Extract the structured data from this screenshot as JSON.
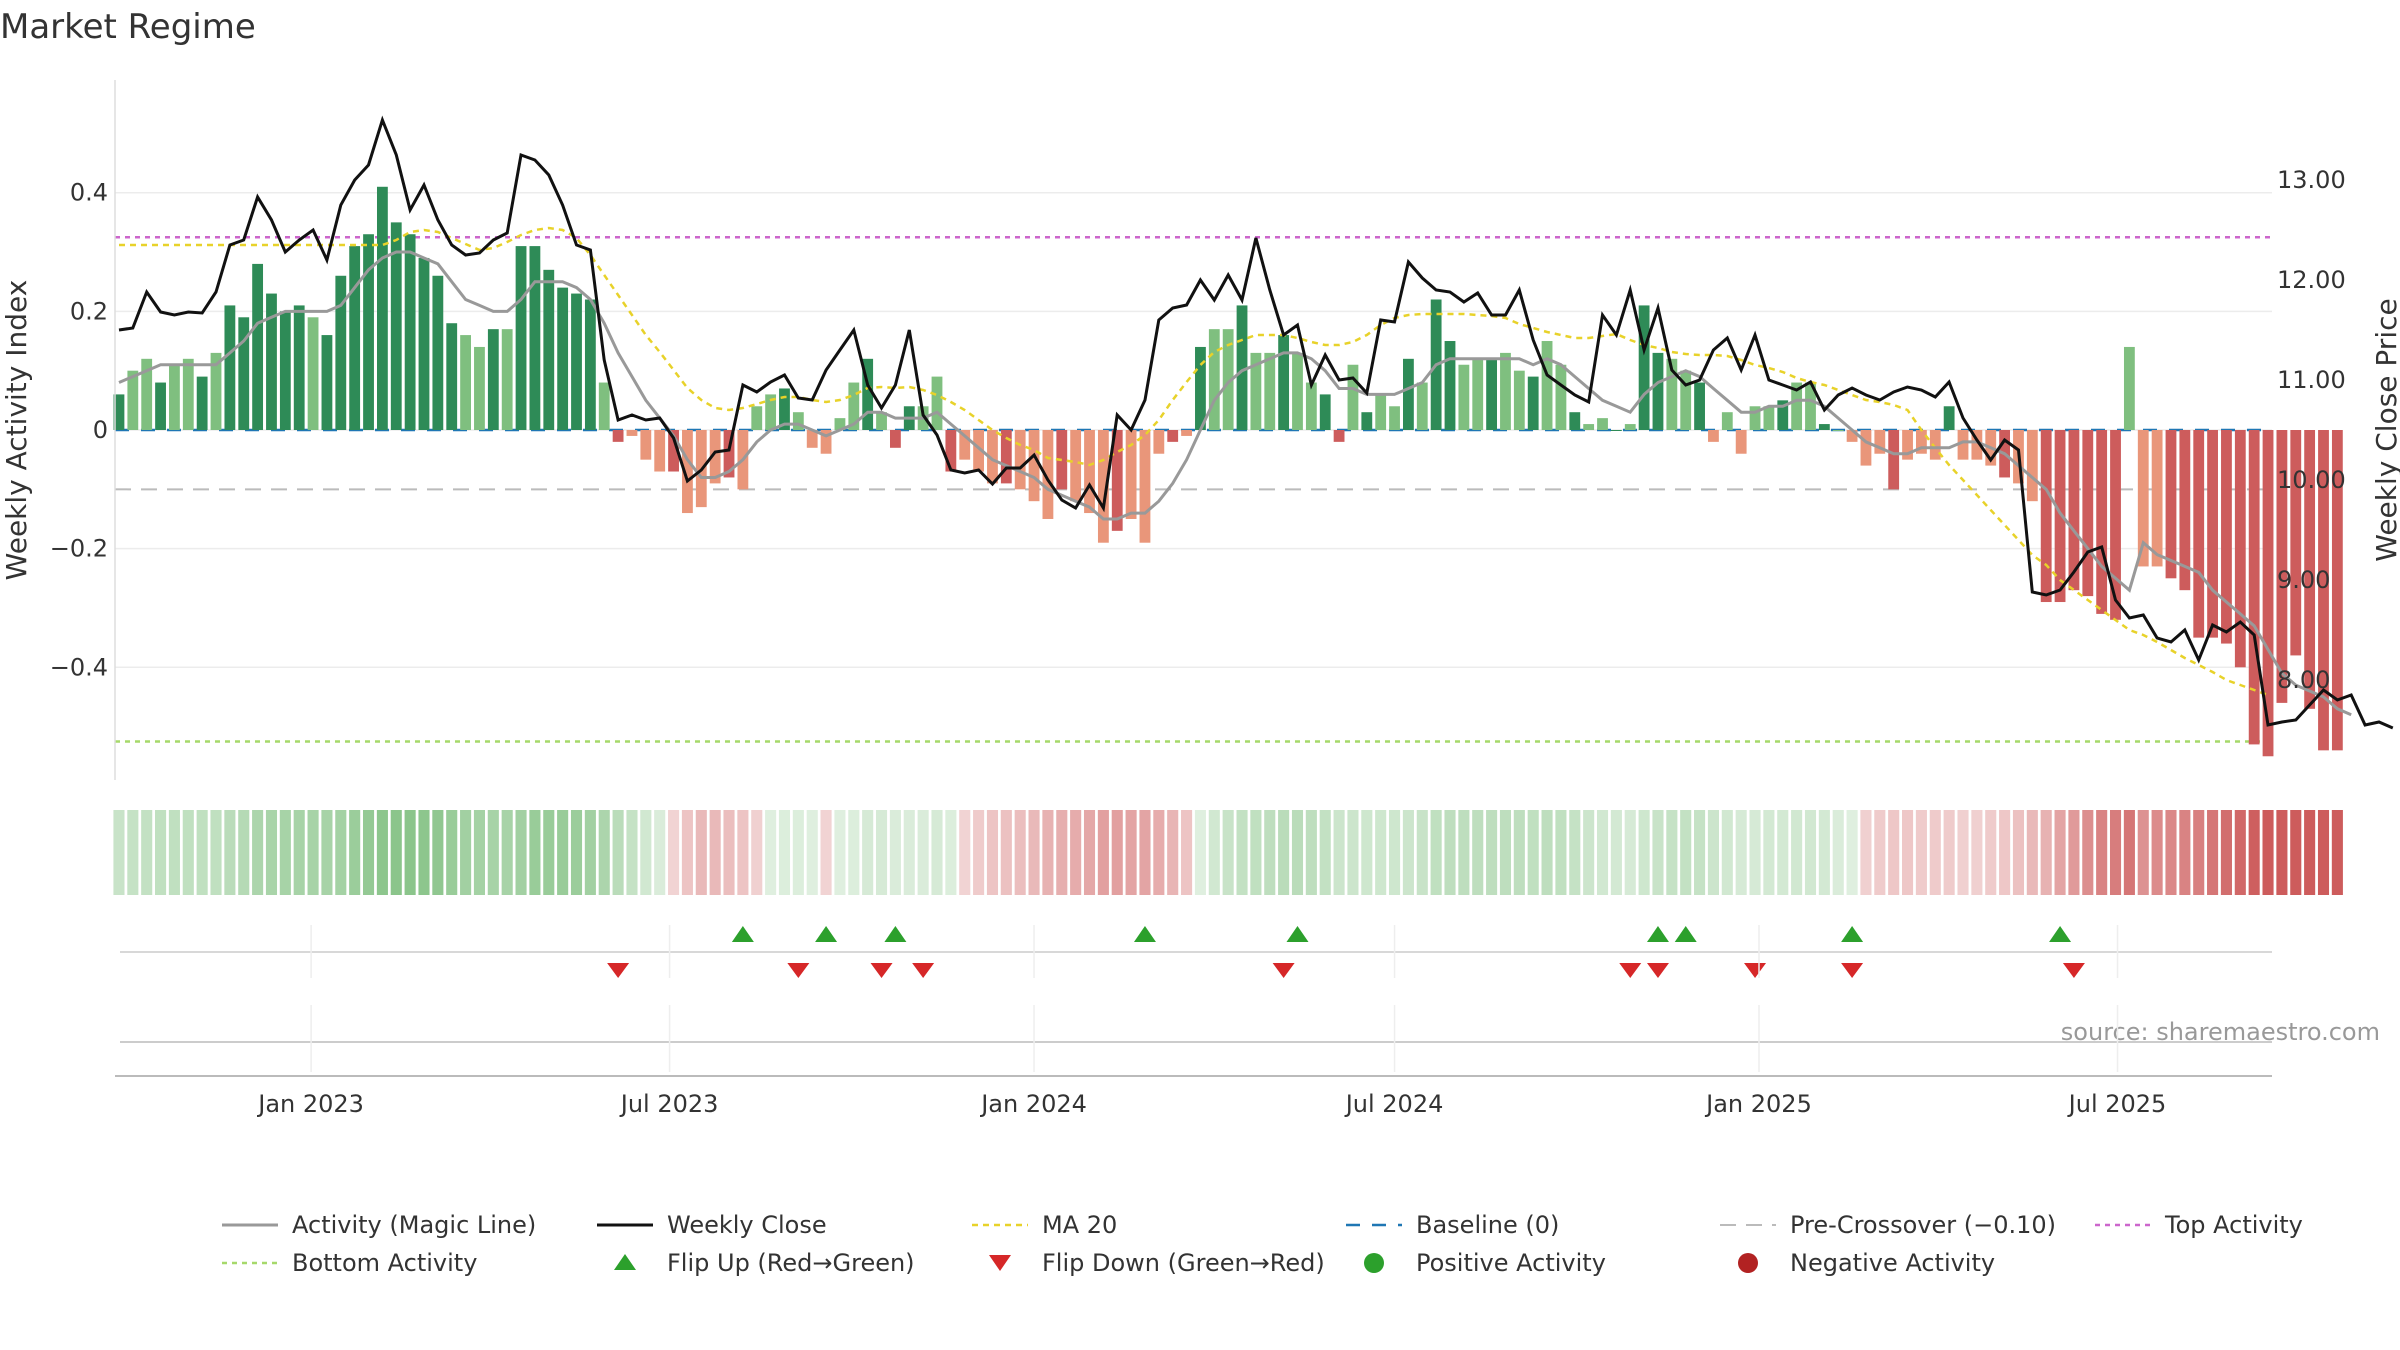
{
  "title": "Market Regime",
  "source": "source: sharemaestro.com",
  "colors": {
    "pos_dark": "#2e8b57",
    "pos_light": "#7fbf7f",
    "neg_dark": "#cd5c5c",
    "neg_light": "#e9967a",
    "activity_line": "#999999",
    "close_line": "#111111",
    "ma_line": "#e8d22a",
    "baseline": "#1f77b4",
    "precross": "#bbbbbb",
    "top": "#cc66cc",
    "bottom": "#a6d96a",
    "flip_up": "#2ca02c",
    "flip_down": "#d62728",
    "pos_dot": "#2ca02c",
    "neg_dot": "#b22222"
  },
  "chart_data": {
    "type": "bar",
    "start_week": "2022-09-26",
    "x_ticks": [
      "Jan 2023",
      "Jul 2023",
      "Jan 2024",
      "Jul 2024",
      "Jan 2025",
      "Jul 2025"
    ],
    "x_tick_dates": [
      "2023-01-01",
      "2023-07-01",
      "2024-01-01",
      "2024-07-01",
      "2025-01-01",
      "2025-07-01"
    ],
    "x_range": [
      "2022-09-24",
      "2025-09-17"
    ],
    "left_axis": {
      "label": "Weekly Activity Index",
      "range": [
        -0.59,
        0.59
      ],
      "ticks": [
        0.4,
        0.2,
        0,
        -0.2,
        -0.4
      ],
      "tick_labels": [
        "0.4",
        "0.2",
        "0",
        "−0.2",
        "−0.4"
      ]
    },
    "right_axis": {
      "label": "Weekly Close Price",
      "range": [
        7.0,
        14.0
      ],
      "ticks": [
        13,
        12,
        11,
        10,
        9,
        8
      ],
      "tick_labels": [
        "13.00",
        "12.00",
        "11.00",
        "10.00",
        "9.00",
        "8.00"
      ]
    },
    "top_activity": 0.325,
    "bottom_activity": -0.525,
    "pre_crossover": -0.1,
    "activity": [
      0.06,
      0.1,
      0.12,
      0.08,
      0.11,
      0.12,
      0.09,
      0.13,
      0.21,
      0.19,
      0.28,
      0.23,
      0.2,
      0.21,
      0.19,
      0.16,
      0.26,
      0.31,
      0.33,
      0.41,
      0.35,
      0.33,
      0.29,
      0.26,
      0.18,
      0.16,
      0.14,
      0.17,
      0.17,
      0.31,
      0.31,
      0.27,
      0.24,
      0.23,
      0.22,
      0.08,
      -0.02,
      -0.01,
      -0.05,
      -0.07,
      -0.07,
      -0.14,
      -0.13,
      -0.09,
      -0.08,
      -0.1,
      0.04,
      0.06,
      0.07,
      0.03,
      -0.03,
      -0.04,
      0.02,
      0.08,
      0.12,
      0.03,
      -0.03,
      0.04,
      0.04,
      0.09,
      -0.07,
      -0.05,
      -0.07,
      -0.09,
      -0.09,
      -0.1,
      -0.12,
      -0.15,
      -0.1,
      -0.12,
      -0.14,
      -0.19,
      -0.17,
      -0.15,
      -0.19,
      -0.04,
      -0.02,
      -0.01,
      0.14,
      0.17,
      0.17,
      0.21,
      0.13,
      0.13,
      0.16,
      0.13,
      0.08,
      0.06,
      -0.02,
      0.11,
      0.03,
      0.06,
      0.04,
      0.12,
      0.08,
      0.22,
      0.15,
      0.11,
      0.12,
      0.12,
      0.13,
      0.1,
      0.09,
      0.15,
      0.11,
      0.03,
      0.01,
      0.02,
      0.0,
      0.01,
      0.21,
      0.13,
      0.12,
      0.1,
      0.08,
      -0.02,
      0.03,
      -0.04,
      0.04,
      0.04,
      0.05,
      0.08,
      0.08,
      0.01,
      0.0,
      -0.02,
      -0.06,
      -0.04,
      -0.1,
      -0.05,
      -0.04,
      -0.05,
      0.04,
      -0.05,
      -0.05,
      -0.06,
      -0.08,
      -0.09,
      -0.12,
      -0.29,
      -0.29,
      -0.27,
      -0.28,
      -0.31,
      -0.32,
      0.14,
      -0.23,
      -0.23,
      -0.25,
      -0.27,
      -0.35,
      -0.35,
      -0.36,
      -0.4,
      -0.53,
      -0.55,
      -0.46,
      -0.38,
      -0.47,
      -0.54,
      -0.54
    ],
    "close": [
      11.5,
      11.52,
      11.88,
      11.68,
      11.65,
      11.68,
      11.67,
      11.88,
      12.35,
      12.4,
      12.83,
      12.6,
      12.28,
      12.4,
      12.5,
      12.2,
      12.75,
      13.0,
      13.15,
      13.6,
      13.25,
      12.7,
      12.95,
      12.6,
      12.35,
      12.25,
      12.27,
      12.4,
      12.47,
      13.25,
      13.2,
      13.05,
      12.75,
      12.35,
      12.3,
      11.2,
      10.6,
      10.65,
      10.6,
      10.62,
      10.42,
      9.99,
      10.1,
      10.28,
      10.3,
      10.95,
      10.88,
      10.98,
      11.05,
      10.82,
      10.8,
      11.1,
      11.3,
      11.5,
      10.95,
      10.72,
      10.95,
      11.5,
      10.65,
      10.45,
      10.1,
      10.07,
      10.1,
      9.96,
      10.12,
      10.12,
      10.25,
      10.0,
      9.8,
      9.72,
      9.95,
      9.72,
      10.65,
      10.5,
      10.8,
      11.6,
      11.72,
      11.75,
      12.0,
      11.8,
      12.05,
      11.8,
      12.42,
      11.9,
      11.45,
      11.55,
      10.95,
      11.25,
      11.0,
      11.02,
      10.87,
      11.6,
      11.58,
      12.18,
      12.02,
      11.9,
      11.88,
      11.78,
      11.87,
      11.65,
      11.65,
      11.9,
      11.4,
      11.05,
      10.95,
      10.85,
      10.78,
      11.65,
      11.45,
      11.9,
      11.3,
      11.72,
      11.1,
      10.95,
      11.0,
      11.3,
      11.42,
      11.1,
      11.45,
      11.0,
      10.95,
      10.9,
      10.98,
      10.7,
      10.85,
      10.92,
      10.85,
      10.8,
      10.88,
      10.93,
      10.9,
      10.83,
      10.98,
      10.62,
      10.4,
      10.2,
      10.4,
      10.3,
      8.88,
      8.85,
      8.9,
      9.08,
      9.28,
      9.33,
      8.8,
      8.62,
      8.65,
      8.42,
      8.38,
      8.5,
      8.2,
      8.55,
      8.48,
      8.58,
      8.45,
      7.55,
      7.58,
      7.6,
      7.75,
      7.9,
      7.8,
      7.85,
      7.55,
      7.58,
      7.52
    ],
    "magic_line": [
      0.08,
      0.09,
      0.1,
      0.11,
      0.11,
      0.11,
      0.11,
      0.11,
      0.13,
      0.15,
      0.18,
      0.19,
      0.2,
      0.2,
      0.2,
      0.2,
      0.21,
      0.24,
      0.27,
      0.29,
      0.3,
      0.3,
      0.29,
      0.28,
      0.25,
      0.22,
      0.21,
      0.2,
      0.2,
      0.22,
      0.25,
      0.25,
      0.25,
      0.24,
      0.22,
      0.18,
      0.13,
      0.09,
      0.05,
      0.02,
      -0.01,
      -0.05,
      -0.08,
      -0.08,
      -0.07,
      -0.05,
      -0.02,
      0.0,
      0.01,
      0.01,
      0.0,
      -0.01,
      0.0,
      0.01,
      0.03,
      0.03,
      0.02,
      0.02,
      0.02,
      0.03,
      0.01,
      -0.01,
      -0.03,
      -0.05,
      -0.06,
      -0.07,
      -0.08,
      -0.1,
      -0.11,
      -0.12,
      -0.13,
      -0.15,
      -0.15,
      -0.14,
      -0.14,
      -0.12,
      -0.09,
      -0.05,
      0.0,
      0.05,
      0.08,
      0.1,
      0.11,
      0.12,
      0.13,
      0.13,
      0.12,
      0.1,
      0.07,
      0.07,
      0.06,
      0.06,
      0.06,
      0.07,
      0.08,
      0.11,
      0.12,
      0.12,
      0.12,
      0.12,
      0.12,
      0.12,
      0.11,
      0.12,
      0.11,
      0.09,
      0.07,
      0.05,
      0.04,
      0.03,
      0.06,
      0.08,
      0.09,
      0.1,
      0.09,
      0.07,
      0.05,
      0.03,
      0.03,
      0.04,
      0.04,
      0.05,
      0.05,
      0.04,
      0.02,
      0.0,
      -0.02,
      -0.03,
      -0.04,
      -0.04,
      -0.03,
      -0.03,
      -0.03,
      -0.02,
      -0.02,
      -0.03,
      -0.04,
      -0.06,
      -0.08,
      -0.1,
      -0.14,
      -0.17,
      -0.2,
      -0.23,
      -0.25,
      -0.27,
      -0.19,
      -0.21,
      -0.22,
      -0.23,
      -0.24,
      -0.27,
      -0.29,
      -0.31,
      -0.33,
      -0.37,
      -0.41,
      -0.43,
      -0.44,
      -0.45,
      -0.47,
      -0.48
    ],
    "ma20": [
      12.35,
      12.35,
      12.35,
      12.35,
      12.35,
      12.35,
      12.35,
      12.35,
      12.35,
      12.35,
      12.35,
      12.35,
      12.35,
      12.35,
      12.35,
      12.35,
      12.35,
      12.35,
      12.35,
      12.35,
      12.4,
      12.48,
      12.5,
      12.48,
      12.42,
      12.36,
      12.3,
      12.32,
      12.38,
      12.45,
      12.5,
      12.52,
      12.5,
      12.42,
      12.25,
      12.05,
      11.85,
      11.65,
      11.45,
      11.28,
      11.1,
      10.92,
      10.8,
      10.72,
      10.7,
      10.72,
      10.76,
      10.8,
      10.83,
      10.83,
      10.8,
      10.78,
      10.8,
      10.85,
      10.92,
      10.93,
      10.92,
      10.93,
      10.9,
      10.85,
      10.78,
      10.7,
      10.6,
      10.5,
      10.42,
      10.35,
      10.3,
      10.22,
      10.2,
      10.18,
      10.15,
      10.2,
      10.28,
      10.35,
      10.45,
      10.6,
      10.8,
      10.98,
      11.15,
      11.28,
      11.35,
      11.4,
      11.45,
      11.45,
      11.45,
      11.42,
      11.38,
      11.35,
      11.35,
      11.38,
      11.45,
      11.55,
      11.62,
      11.65,
      11.66,
      11.66,
      11.66,
      11.66,
      11.65,
      11.64,
      11.62,
      11.56,
      11.52,
      11.48,
      11.45,
      11.42,
      11.42,
      11.44,
      11.46,
      11.4,
      11.35,
      11.32,
      11.28,
      11.26,
      11.25,
      11.25,
      11.24,
      11.2,
      11.15,
      11.12,
      11.08,
      11.02,
      10.98,
      10.95,
      10.9,
      10.85,
      10.8,
      10.78,
      10.75,
      10.7,
      10.5,
      10.32,
      10.15,
      10.0,
      9.85,
      9.7,
      9.55,
      9.4,
      9.25,
      9.15,
      9.0,
      8.9,
      8.8,
      8.7,
      8.6,
      8.5,
      8.45,
      8.38,
      8.3,
      8.22,
      8.15,
      8.08,
      8.0,
      7.95,
      7.9,
      7.85
    ],
    "flip_up_weeks": [
      45,
      51,
      56,
      74,
      85,
      111,
      113,
      125,
      140
    ],
    "flip_down_weeks": [
      36,
      49,
      55,
      58,
      84,
      109,
      111,
      118,
      125,
      141
    ]
  },
  "legend": [
    {
      "key": "activity",
      "label": "Activity (Magic Line)"
    },
    {
      "key": "close",
      "label": "Weekly Close"
    },
    {
      "key": "ma20",
      "label": "MA 20"
    },
    {
      "key": "baseline",
      "label": "Baseline (0)"
    },
    {
      "key": "precross",
      "label": "Pre-Crossover (−0.10)"
    },
    {
      "key": "top",
      "label": "Top Activity"
    },
    {
      "key": "bottom",
      "label": "Bottom Activity"
    },
    {
      "key": "flipup",
      "label": "Flip Up (Red→Green)"
    },
    {
      "key": "flipdown",
      "label": "Flip Down (Green→Red)"
    },
    {
      "key": "posdot",
      "label": "Positive Activity"
    },
    {
      "key": "negdot",
      "label": "Negative Activity"
    }
  ]
}
